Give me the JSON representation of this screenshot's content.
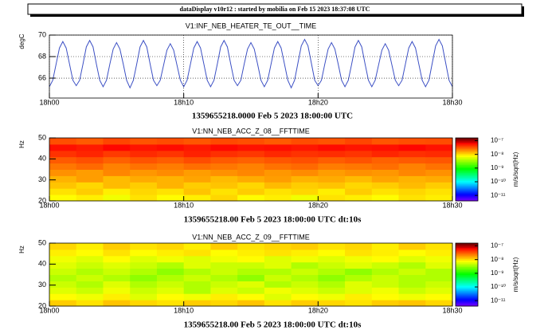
{
  "header": "dataDisplay v10r12 : started by mobilia on Feb 15 2023 18:37:08 UTC",
  "chart_data": [
    {
      "type": "line",
      "title": "V1:INF_NEB_HEATER_TE_OUT__TIME",
      "ylabel": "degC",
      "footer": "1359655218.0000 Feb 5 2023 18:00:00 UTC",
      "color": "#3b4fc4",
      "grid": true,
      "xlim": [
        0,
        30
      ],
      "xticks": [
        {
          "value": 0,
          "label": "18h00"
        },
        {
          "value": 10,
          "label": "18h10"
        },
        {
          "value": 20,
          "label": "18h20"
        },
        {
          "value": 30,
          "label": "18h30"
        }
      ],
      "ylim": [
        64.15,
        70
      ],
      "yticks": [
        66,
        68,
        70
      ],
      "x": [
        0,
        0.25,
        0.5,
        0.75,
        1,
        1.25,
        1.5,
        1.75,
        2,
        2.25,
        2.5,
        2.75,
        3,
        3.25,
        3.5,
        3.75,
        4,
        4.25,
        4.5,
        4.75,
        5,
        5.25,
        5.5,
        5.75,
        6,
        6.25,
        6.5,
        6.75,
        7,
        7.25,
        7.5,
        7.75,
        8,
        8.25,
        8.5,
        8.75,
        9,
        9.25,
        9.5,
        9.75,
        10,
        10.25,
        10.5,
        10.75,
        11,
        11.25,
        11.5,
        11.75,
        12,
        12.25,
        12.5,
        12.75,
        13,
        13.25,
        13.5,
        13.75,
        14,
        14.25,
        14.5,
        14.75,
        15,
        15.25,
        15.5,
        15.75,
        16,
        16.25,
        16.5,
        16.75,
        17,
        17.25,
        17.5,
        17.75,
        18,
        18.25,
        18.5,
        18.75,
        19,
        19.25,
        19.5,
        19.75,
        20,
        20.25,
        20.5,
        20.75,
        21,
        21.25,
        21.5,
        21.75,
        22,
        22.25,
        22.5,
        22.75,
        23,
        23.25,
        23.5,
        23.75,
        24,
        24.25,
        24.5,
        24.75,
        25,
        25.25,
        25.5,
        25.75,
        26,
        26.25,
        26.5,
        26.75,
        27,
        27.25,
        27.5,
        27.75,
        28,
        28.25,
        28.5,
        28.75,
        29,
        29.25,
        29.5,
        29.75,
        30
      ],
      "values": [
        65.2,
        65.8,
        67.3,
        68.8,
        69.4,
        68.8,
        67.3,
        65.8,
        65.3,
        65.8,
        67.3,
        68.9,
        69.5,
        68.9,
        67.3,
        65.8,
        65.2,
        65.8,
        67.3,
        68.7,
        69.3,
        68.7,
        67.3,
        65.8,
        65.1,
        65.8,
        67.3,
        68.9,
        69.5,
        68.9,
        67.3,
        65.8,
        65.3,
        65.8,
        67.2,
        68.6,
        69.2,
        68.6,
        67.2,
        65.8,
        65.2,
        65.8,
        67.3,
        68.8,
        69.4,
        68.8,
        67.3,
        65.8,
        65.2,
        65.8,
        67.3,
        68.9,
        69.5,
        68.9,
        67.3,
        65.8,
        65.3,
        65.8,
        67.3,
        68.7,
        69.3,
        68.7,
        67.3,
        65.8,
        65.2,
        65.8,
        67.3,
        68.8,
        69.4,
        68.8,
        67.3,
        65.8,
        65.1,
        65.8,
        67.4,
        69.0,
        69.6,
        69.0,
        67.4,
        65.8,
        65.3,
        65.8,
        67.3,
        68.7,
        69.3,
        68.7,
        67.3,
        65.8,
        65.2,
        65.8,
        67.3,
        68.9,
        69.5,
        68.9,
        67.3,
        65.8,
        65.2,
        65.8,
        67.2,
        68.6,
        69.2,
        68.6,
        67.2,
        65.8,
        65.3,
        65.8,
        67.3,
        68.8,
        69.4,
        68.8,
        67.3,
        65.8,
        65.2,
        65.8,
        67.4,
        69.0,
        69.6,
        69.0,
        67.4,
        65.8,
        65.2
      ]
    },
    {
      "type": "heatmap",
      "title": "V1:NN_NEB_ACC_Z_08__FFTTIME",
      "ylabel": "Hz",
      "zlabel": "m/s/sqrt(Hz)",
      "footer": "1359655218.00 Feb 5 2023 18:00:00 UTC dt:10s",
      "colormap": "rainbow",
      "log_scale_z": true,
      "xlim": [
        0,
        30
      ],
      "xticks": [
        {
          "value": 0,
          "label": "18h00"
        },
        {
          "value": 10,
          "label": "18h10"
        },
        {
          "value": 20,
          "label": "18h20"
        },
        {
          "value": 30,
          "label": "18h30"
        }
      ],
      "ylim": [
        20,
        50
      ],
      "yticks": [
        20,
        30,
        40,
        50
      ],
      "zlim": [
        4e-12,
        1.6e-07
      ],
      "zticks": [
        {
          "value": 1e-07,
          "label": "10⁻⁷"
        },
        {
          "value": 1e-08,
          "label": "10⁻⁸"
        },
        {
          "value": 1e-09,
          "label": "10⁻⁹"
        },
        {
          "value": 1e-10,
          "label": "10⁻¹⁰"
        },
        {
          "value": 1e-11,
          "label": "10⁻¹¹"
        }
      ],
      "xbins": [
        0,
        2,
        4,
        6,
        8,
        10,
        12,
        14,
        16,
        18,
        20,
        22,
        24,
        26,
        28,
        30
      ],
      "ybins": [
        20,
        23,
        26,
        29,
        32,
        35,
        38,
        41,
        44,
        47,
        50
      ],
      "z": [
        [
          8e-09,
          9e-09,
          7e-09,
          1e-08,
          8e-09,
          9e-09,
          1.1e-08,
          8e-09,
          9e-09,
          7e-09,
          1e-08,
          9e-09,
          8e-09,
          1e-08,
          9e-09
        ],
        [
          1e-08,
          1.2e-08,
          9e-09,
          1.1e-08,
          1e-08,
          1.3e-08,
          1e-08,
          1.2e-08,
          1e-08,
          1.1e-08,
          9e-09,
          1.2e-08,
          1e-08,
          1.1e-08,
          1e-08
        ],
        [
          1.3e-08,
          1.1e-08,
          1.4e-08,
          1.2e-08,
          1.5e-08,
          1.2e-08,
          1.3e-08,
          1.1e-08,
          1.4e-08,
          1.2e-08,
          1.3e-08,
          1.1e-08,
          1.2e-08,
          1.4e-08,
          1.2e-08
        ],
        [
          1.5e-08,
          1.8e-08,
          1.4e-08,
          1.6e-08,
          1.5e-08,
          1.7e-08,
          1.4e-08,
          1.6e-08,
          1.8e-08,
          1.5e-08,
          1.6e-08,
          1.4e-08,
          1.7e-08,
          1.5e-08,
          1.6e-08
        ],
        [
          2e-08,
          1.8e-08,
          2.2e-08,
          1.9e-08,
          2.1e-08,
          1.8e-08,
          2e-08,
          2.2e-08,
          1.9e-08,
          2.1e-08,
          1.8e-08,
          2e-08,
          1.9e-08,
          2.2e-08,
          2e-08
        ],
        [
          2.5e-08,
          2.8e-08,
          2.3e-08,
          2.6e-08,
          2.4e-08,
          2.7e-08,
          2.5e-08,
          2.3e-08,
          2.6e-08,
          2.8e-08,
          2.4e-08,
          2.5e-08,
          2.7e-08,
          2.3e-08,
          2.6e-08
        ],
        [
          3.2e-08,
          3.5e-08,
          3e-08,
          3.4e-08,
          3.1e-08,
          3.6e-08,
          3.2e-08,
          3e-08,
          3.3e-08,
          3.5e-08,
          3.1e-08,
          3.4e-08,
          3e-08,
          3.2e-08,
          3.3e-08
        ],
        [
          4.5e-08,
          5e-08,
          4.2e-08,
          4.8e-08,
          4.4e-08,
          5.2e-08,
          4.6e-08,
          4.3e-08,
          4.9e-08,
          4.5e-08,
          4.7e-08,
          4.4e-08,
          5e-08,
          4.6e-08,
          4.8e-08
        ],
        [
          6e-08,
          5.5e-08,
          6.5e-08,
          5.8e-08,
          6.2e-08,
          5.6e-08,
          6.4e-08,
          5.9e-08,
          6.1e-08,
          5.7e-08,
          6.3e-08,
          5.8e-08,
          6e-08,
          6.5e-08,
          5.9e-08
        ],
        [
          3.5e-08,
          3.2e-08,
          3.8e-08,
          3.4e-08,
          3.6e-08,
          3.3e-08,
          3.7e-08,
          3.5e-08,
          3.2e-08,
          3.6e-08,
          3.4e-08,
          3.8e-08,
          3.3e-08,
          3.5e-08,
          3.6e-08
        ]
      ]
    },
    {
      "type": "heatmap",
      "title": "V1:NN_NEB_ACC_Z_09__FFTTIME",
      "ylabel": "Hz",
      "zlabel": "m/s/sqrt(Hz)",
      "footer": "1359655218.00 Feb 5 2023 18:00:00 UTC dt:10s",
      "colormap": "rainbow",
      "log_scale_z": true,
      "xlim": [
        0,
        30
      ],
      "xticks": [
        {
          "value": 0,
          "label": "18h00"
        },
        {
          "value": 10,
          "label": "18h10"
        },
        {
          "value": 20,
          "label": "18h20"
        },
        {
          "value": 30,
          "label": "18h30"
        }
      ],
      "ylim": [
        20,
        50
      ],
      "yticks": [
        20,
        30,
        40,
        50
      ],
      "zlim": [
        4e-12,
        1.6e-07
      ],
      "zticks": [
        {
          "value": 1e-07,
          "label": "10⁻⁷"
        },
        {
          "value": 1e-08,
          "label": "10⁻⁸"
        },
        {
          "value": 1e-09,
          "label": "10⁻⁹"
        },
        {
          "value": 1e-10,
          "label": "10⁻¹⁰"
        },
        {
          "value": 1e-11,
          "label": "10⁻¹¹"
        }
      ],
      "xbins": [
        0,
        2,
        4,
        6,
        8,
        10,
        12,
        14,
        16,
        18,
        20,
        22,
        24,
        26,
        28,
        30
      ],
      "ybins": [
        20,
        23,
        26,
        29,
        32,
        35,
        38,
        41,
        44,
        47,
        50
      ],
      "z": [
        [
          1.2e-08,
          1e-08,
          1.3e-08,
          1.1e-08,
          1e-08,
          1.2e-08,
          1.1e-08,
          1.3e-08,
          1e-08,
          1.2e-08,
          1.1e-08,
          1e-08,
          1.2e-08,
          1.3e-08,
          1.1e-08
        ],
        [
          8e-09,
          7e-09,
          9e-09,
          6e-09,
          8e-09,
          7e-09,
          9e-09,
          8e-09,
          6e-09,
          8e-09,
          7e-09,
          9e-09,
          8e-09,
          7e-09,
          8e-09
        ],
        [
          6e-09,
          5e-09,
          7e-09,
          5e-09,
          6e-09,
          4e-09,
          6e-09,
          5e-09,
          7e-09,
          6e-09,
          5e-09,
          6e-09,
          7e-09,
          5e-09,
          6e-09
        ],
        [
          5e-09,
          4e-09,
          6e-09,
          4e-09,
          5e-09,
          4e-09,
          5e-09,
          6e-09,
          4e-09,
          5e-09,
          4e-09,
          6e-09,
          5e-09,
          4e-09,
          5e-09
        ],
        [
          4e-09,
          5e-09,
          4e-09,
          3e-09,
          4e-09,
          5e-09,
          4e-09,
          3e-09,
          5e-09,
          4e-09,
          3e-09,
          4e-09,
          5e-09,
          4e-09,
          4e-09
        ],
        [
          5e-09,
          4e-09,
          5e-09,
          4e-09,
          3e-09,
          4e-09,
          5e-09,
          4e-09,
          4e-09,
          5e-09,
          4e-09,
          3e-09,
          4e-09,
          5e-09,
          4e-09
        ],
        [
          6e-09,
          5e-09,
          6e-09,
          5e-09,
          4e-09,
          6e-09,
          5e-09,
          5e-09,
          6e-09,
          4e-09,
          5e-09,
          6e-09,
          5e-09,
          4e-09,
          6e-09
        ],
        [
          7e-09,
          6e-09,
          8e-09,
          6e-09,
          7e-09,
          6e-09,
          7e-09,
          8e-09,
          6e-09,
          7e-09,
          6e-09,
          7e-09,
          8e-09,
          6e-09,
          7e-09
        ],
        [
          9e-09,
          8e-09,
          1e-08,
          8e-09,
          9e-09,
          1e-08,
          8e-09,
          9e-09,
          1e-08,
          9e-09,
          8e-09,
          1e-08,
          9e-09,
          8e-09,
          9e-09
        ],
        [
          1.1e-08,
          9e-09,
          1.2e-08,
          1e-08,
          1.1e-08,
          9e-09,
          1.2e-08,
          1e-08,
          1.1e-08,
          1.2e-08,
          1e-08,
          1.1e-08,
          9e-09,
          1.2e-08,
          1e-08
        ]
      ]
    }
  ]
}
